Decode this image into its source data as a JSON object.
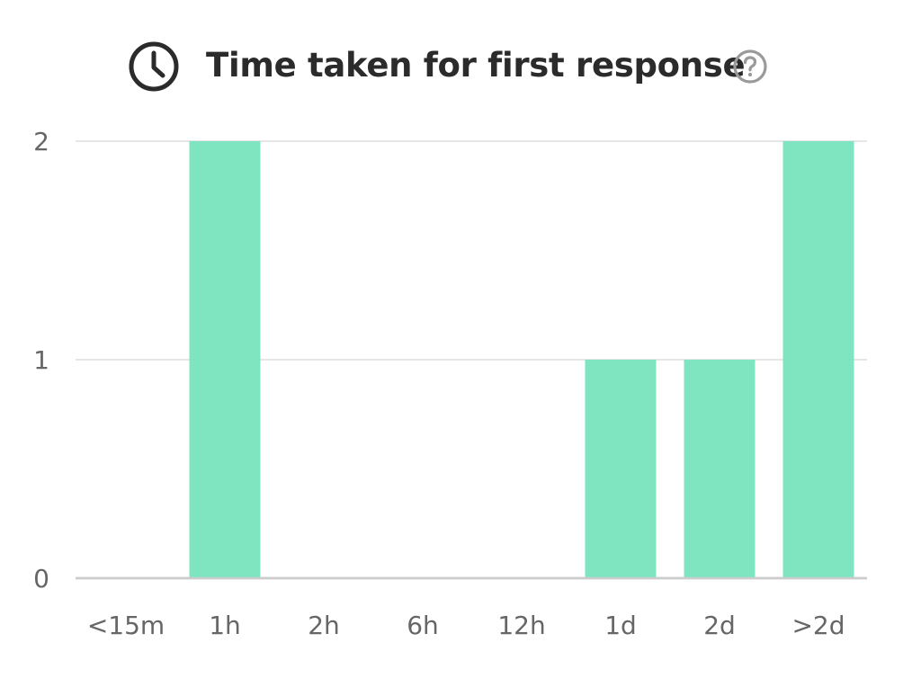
{
  "header": {
    "title": "Time taken for first response",
    "left_icon": "clock-icon",
    "right_icon": "help-circle-icon"
  },
  "colors": {
    "bar": "#7fe5c1",
    "grid": "#e6e6e6",
    "axis": "#cccccc",
    "title": "#2b2b2b",
    "tick_text": "#666666"
  },
  "chart_data": {
    "type": "bar",
    "title": "Time taken for first response",
    "categories": [
      "<15m",
      "1h",
      "2h",
      "6h",
      "12h",
      "1d",
      "2d",
      ">2d"
    ],
    "values": [
      0,
      2,
      0,
      0,
      0,
      1,
      1,
      2
    ],
    "yticks": [
      0,
      1,
      2
    ],
    "ylim": [
      0,
      2
    ],
    "xlabel": "",
    "ylabel": "",
    "grid": true,
    "legend": "none"
  }
}
